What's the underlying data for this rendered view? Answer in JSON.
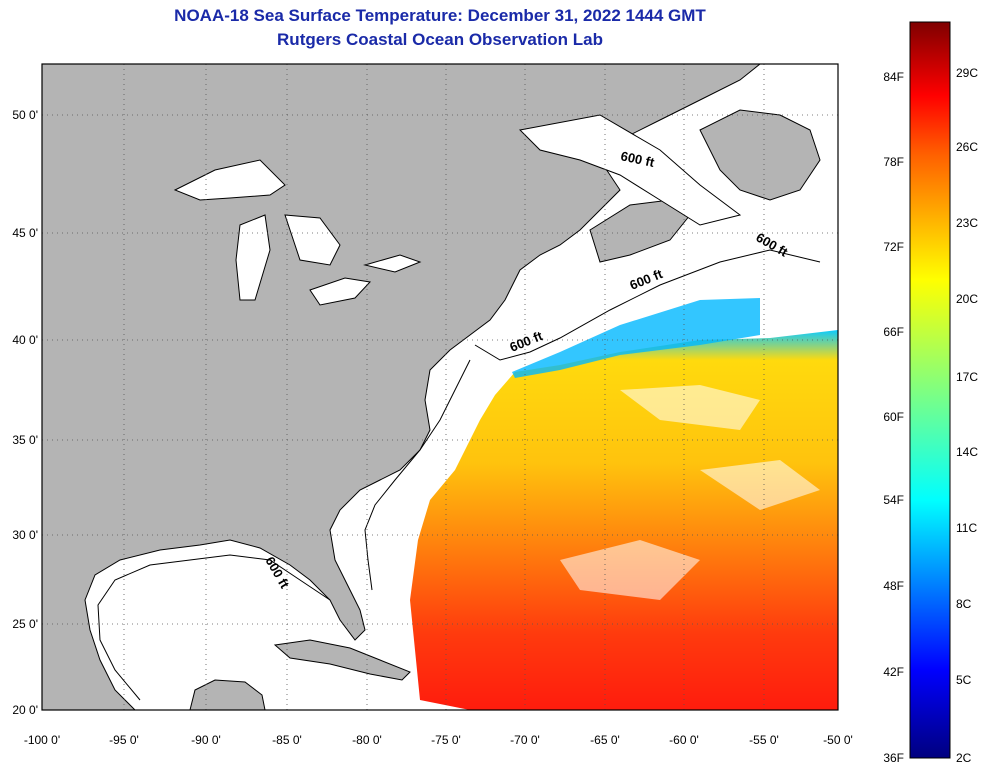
{
  "header": {
    "title": "NOAA-18 Sea Surface Temperature:  December 31, 2022 1444 GMT",
    "subtitle": "Rutgers Coastal Ocean Observation Lab"
  },
  "map": {
    "lon_range": [
      -100,
      -50
    ],
    "lat_range": [
      20,
      52.5
    ],
    "lon_ticks": [
      "-100 0'",
      "-95 0'",
      "-90 0'",
      "-85 0'",
      "-80 0'",
      "-75 0'",
      "-70 0'",
      "-65 0'",
      "-60 0'",
      "-55 0'",
      "-50 0'"
    ],
    "lat_ticks": [
      "20 0'",
      "25 0'",
      "30 0'",
      "35 0'",
      "40 0'",
      "45 0'",
      "50 0'"
    ],
    "land_color": "#b4b4b4",
    "ocean_color": "#ffffff",
    "gridlines": true,
    "depth_labels": [
      "600 ft",
      "600 ft",
      "600 ft",
      "600 ft",
      "600 ft"
    ]
  },
  "colorbar": {
    "fahrenheit": [
      "36F",
      "42F",
      "48F",
      "54F",
      "60F",
      "66F",
      "72F",
      "78F",
      "84F"
    ],
    "celsius": [
      "2C",
      "5C",
      "8C",
      "11C",
      "14C",
      "17C",
      "20C",
      "23C",
      "26C",
      "29C"
    ],
    "colors": [
      "#00007f",
      "#0000ff",
      "#0080ff",
      "#00ffff",
      "#80ff80",
      "#ffff00",
      "#ff8000",
      "#ff0000",
      "#7f0000"
    ]
  }
}
